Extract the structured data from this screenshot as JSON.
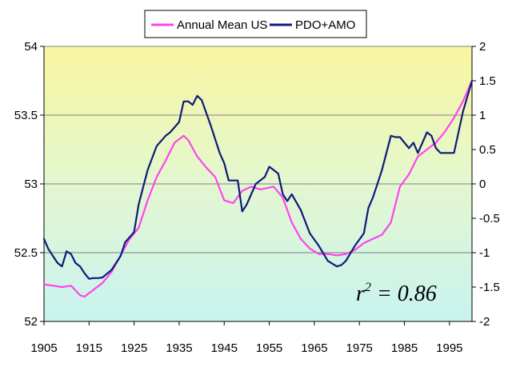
{
  "chart_data": {
    "type": "line",
    "title": "",
    "xlabel": "",
    "ylabel": "",
    "x_ticks": [
      "1905",
      "1915",
      "1925",
      "1935",
      "1945",
      "1955",
      "1965",
      "1975",
      "1985",
      "1995"
    ],
    "xlim": [
      1905,
      2000
    ],
    "ylim_left": [
      52,
      54
    ],
    "ylim_right": [
      -2,
      2
    ],
    "y_ticks_left": [
      "54",
      "53.5",
      "53",
      "52.5",
      "52"
    ],
    "y_ticks_right": [
      "2",
      "1.5",
      "1",
      "0.5",
      "0",
      "-0.5",
      "-1",
      "-1.5",
      "-2"
    ],
    "background": "vertical gradient yellow (top) to light cyan (bottom)",
    "legend_position": "top-center",
    "annotation": {
      "prefix": "r",
      "superscript": "2",
      "suffix": " = 0.86"
    },
    "series": [
      {
        "name": "Annual Mean US",
        "axis": "left",
        "color": "#ff44ee",
        "x": [
          1905,
          1907,
          1909,
          1911,
          1913,
          1914,
          1916,
          1918,
          1920,
          1922,
          1924,
          1926,
          1928,
          1930,
          1932,
          1934,
          1936,
          1937,
          1939,
          1941,
          1943,
          1945,
          1947,
          1949,
          1951,
          1953,
          1956,
          1958,
          1960,
          1962,
          1964,
          1966,
          1968,
          1970,
          1972,
          1974,
          1976,
          1978,
          1980,
          1982,
          1984,
          1986,
          1988,
          1990,
          1992,
          1994,
          1996,
          1998,
          2000
        ],
        "values": [
          52.27,
          52.26,
          52.25,
          52.26,
          52.19,
          52.18,
          52.23,
          52.28,
          52.36,
          52.48,
          52.6,
          52.68,
          52.88,
          53.05,
          53.17,
          53.3,
          53.35,
          53.32,
          53.2,
          53.12,
          53.05,
          52.88,
          52.86,
          52.95,
          52.98,
          52.96,
          52.98,
          52.9,
          52.72,
          52.6,
          52.53,
          52.49,
          52.49,
          52.48,
          52.49,
          52.52,
          52.57,
          52.6,
          52.63,
          52.72,
          52.98,
          53.07,
          53.2,
          53.25,
          53.3,
          53.38,
          53.48,
          53.6,
          53.75
        ]
      },
      {
        "name": "PDO+AMO",
        "axis": "right",
        "color": "#0d1b7a",
        "x": [
          1905,
          1906,
          1908,
          1909,
          1910,
          1911,
          1912,
          1913,
          1914,
          1915,
          1916,
          1917,
          1918,
          1920,
          1922,
          1923,
          1925,
          1926,
          1928,
          1930,
          1932,
          1933,
          1935,
          1936,
          1937,
          1938,
          1939,
          1940,
          1942,
          1944,
          1945,
          1946,
          1948,
          1949,
          1950,
          1952,
          1954,
          1955,
          1956,
          1957,
          1958,
          1959,
          1960,
          1962,
          1964,
          1966,
          1968,
          1970,
          1971,
          1972,
          1974,
          1976,
          1977,
          1978,
          1980,
          1982,
          1983,
          1984,
          1986,
          1987,
          1988,
          1990,
          1991,
          1992,
          1993,
          1994,
          1996,
          1998,
          2000
        ],
        "values": [
          -0.8,
          -0.95,
          -1.15,
          -1.2,
          -0.98,
          -1.02,
          -1.15,
          -1.2,
          -1.3,
          -1.38,
          -1.37,
          -1.37,
          -1.36,
          -1.25,
          -1.05,
          -0.85,
          -0.7,
          -0.3,
          0.2,
          0.55,
          0.7,
          0.75,
          0.9,
          1.2,
          1.2,
          1.15,
          1.28,
          1.22,
          0.85,
          0.45,
          0.3,
          0.05,
          0.05,
          -0.4,
          -0.3,
          0.0,
          0.1,
          0.25,
          0.2,
          0.15,
          -0.15,
          -0.25,
          -0.15,
          -0.38,
          -0.72,
          -0.9,
          -1.12,
          -1.2,
          -1.18,
          -1.12,
          -0.9,
          -0.72,
          -0.35,
          -0.2,
          0.2,
          0.7,
          0.68,
          0.68,
          0.52,
          0.6,
          0.45,
          0.75,
          0.7,
          0.52,
          0.45,
          0.45,
          0.45,
          1.05,
          1.5
        ]
      }
    ]
  }
}
